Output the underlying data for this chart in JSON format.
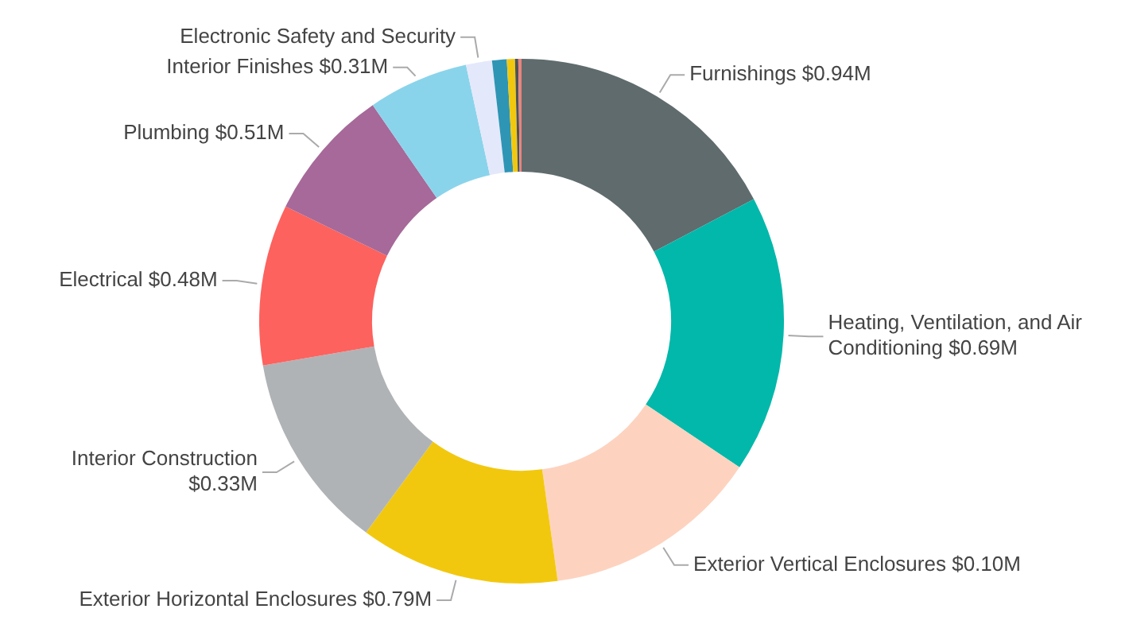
{
  "chart_data": {
    "type": "donut",
    "categories": [
      "Furnishings $0.94M",
      "Heating, Ventilation, and Air Conditioning $0.69M",
      "Exterior Vertical Enclosures $0.10M",
      "Exterior Horizontal Enclosures $0.79M",
      "Interior Construction $0.33M",
      "Electrical $0.48M",
      "Plumbing $0.51M",
      "Interior Finishes $0.31M",
      "Electronic Safety and Security",
      null,
      null,
      null,
      null
    ],
    "values": [
      17.3,
      17.1,
      13.4,
      12.3,
      12.2,
      9.9,
      8.2,
      6.2,
      1.6,
      0.9,
      0.5,
      0.2,
      0.2
    ],
    "colors": [
      "#5f6b6d",
      "#01b8aa",
      "#fdd3bf",
      "#f2c80f",
      "#b0b3b6",
      "#fd625e",
      "#a66999",
      "#8ad4eb",
      "#e4e8fb",
      "#2f95b4",
      "#f2c80f",
      "#4d5358",
      "#e8847e"
    ]
  }
}
